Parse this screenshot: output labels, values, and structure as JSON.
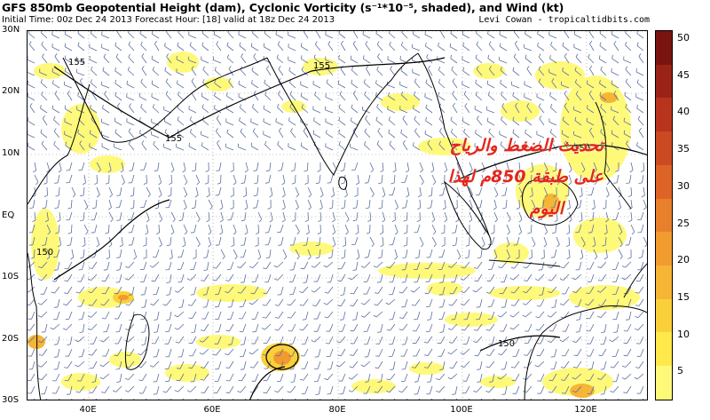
{
  "header": {
    "title": "GFS 850mb Geopotential Height (dam), Cyclonic Vorticity (s⁻¹*10⁻⁵, shaded), and Wind (kt)",
    "subtitle": "Initial Time: 00z Dec 24 2013  Forecast Hour: [18]  valid at 18z Dec 24 2013",
    "credit": "Levi Cowan - tropicaltidbits.com"
  },
  "map": {
    "lat_labels": [
      "30N",
      "20N",
      "10N",
      "EQ",
      "10S",
      "20S",
      "30S"
    ],
    "lon_labels": [
      "40E",
      "60E",
      "80E",
      "100E",
      "120E"
    ],
    "contour_labels": [
      "155",
      "155",
      "155",
      "150",
      "150",
      "150"
    ],
    "overlay_text": {
      "line1": "تحديث الضغط والرياح",
      "line2": "على طبقة 850م لهذا",
      "line3": "اليوم"
    }
  },
  "colorbar": {
    "labels": [
      "50",
      "45",
      "40",
      "35",
      "30",
      "25",
      "20",
      "15",
      "10",
      "5"
    ],
    "colors": [
      "#7a1410",
      "#9b2216",
      "#b8341c",
      "#cc4a22",
      "#dd6326",
      "#e87f2a",
      "#f19a2e",
      "#f6b534",
      "#fad03a",
      "#ffe94a",
      "#fff97a"
    ]
  }
}
